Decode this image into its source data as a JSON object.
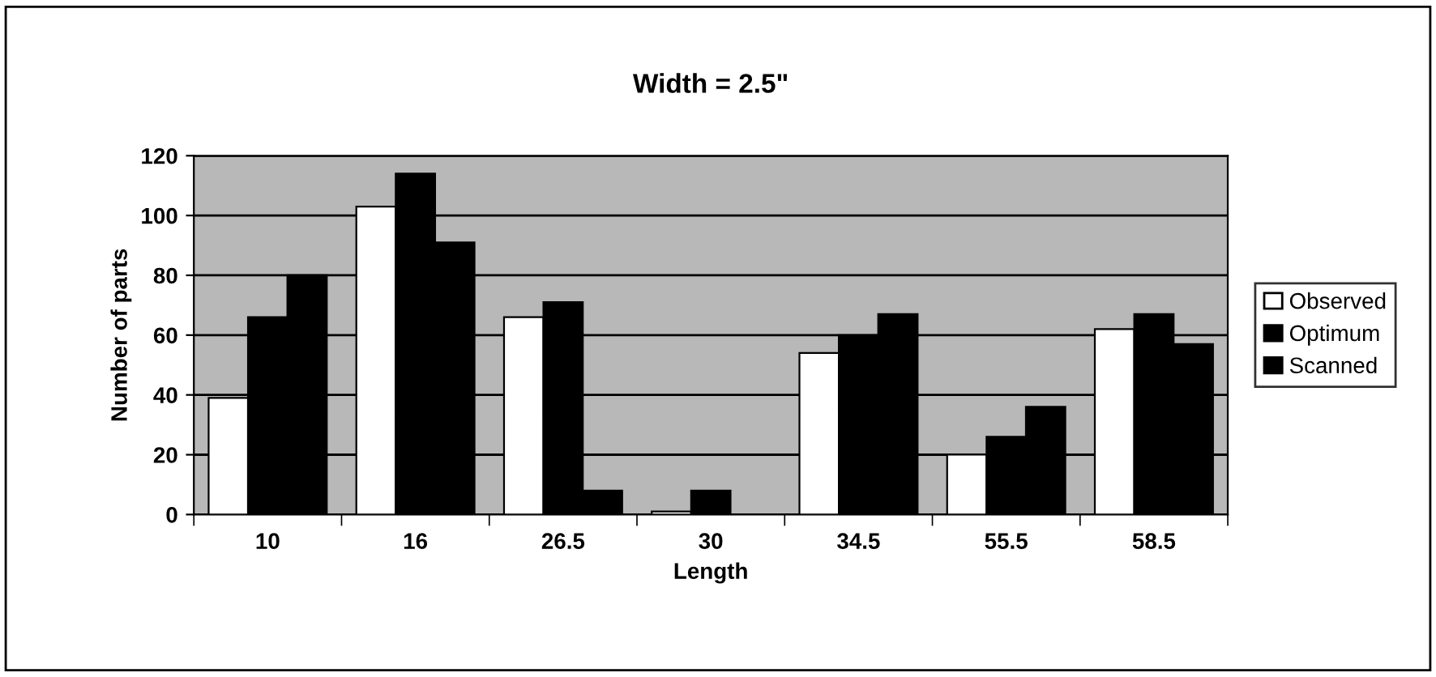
{
  "chart_data": {
    "type": "bar",
    "title": "Width = 2.5\"",
    "xlabel": "Length",
    "ylabel": "Number of parts",
    "categories": [
      "10",
      "16",
      "26.5",
      "30",
      "34.5",
      "55.5",
      "58.5"
    ],
    "series": [
      {
        "name": "Observed",
        "color": "#ffffff",
        "values": [
          39,
          103,
          66,
          1,
          54,
          20,
          62
        ]
      },
      {
        "name": "Optimum",
        "color": "#000000",
        "values": [
          66,
          114,
          71,
          8,
          60,
          26,
          67
        ]
      },
      {
        "name": "Scanned",
        "color": "#000000",
        "values": [
          80,
          91,
          8,
          0,
          67,
          36,
          57
        ]
      }
    ],
    "ylim": [
      0,
      120
    ],
    "yticks": [
      0,
      20,
      40,
      60,
      80,
      100,
      120
    ],
    "grid": "y",
    "legend": "right"
  }
}
